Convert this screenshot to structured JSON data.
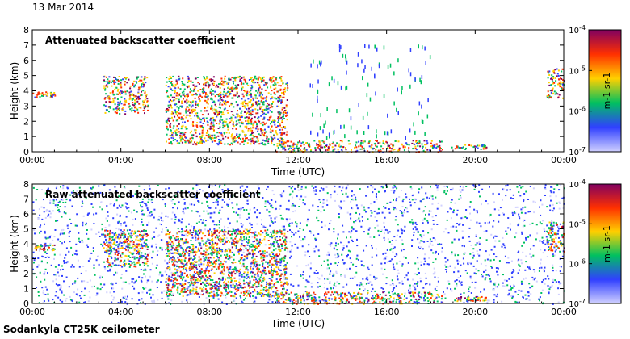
{
  "date": "13 Mar 2014",
  "instrument": "Sodankyla CT25K ceilometer",
  "colors": {
    "stops": [
      "#d0d0ff",
      "#3040ff",
      "#00c060",
      "#ffd000",
      "#ff3000",
      "#800060"
    ]
  },
  "chart_data": [
    {
      "type": "heatmap",
      "title": "Attenuated backscatter coefficient",
      "xlabel": "Time (UTC)",
      "ylabel": "Height (km)",
      "xlim": [
        0,
        24
      ],
      "ylim": [
        0,
        8
      ],
      "xticks": [
        "00:00",
        "04:00",
        "08:00",
        "12:00",
        "16:00",
        "20:00",
        "00:00"
      ],
      "yticks": [
        "0",
        "1",
        "2",
        "3",
        "4",
        "5",
        "6",
        "7",
        "8"
      ],
      "colorbar": {
        "scale": "log",
        "label": "m-1 sr-1",
        "range": [
          1e-07,
          0.0001
        ],
        "ticks": [
          "10-7",
          "10-6",
          "10-5",
          "10-4"
        ]
      },
      "features": [
        {
          "name": "cloud layer",
          "t": [
            0.0,
            1.0
          ],
          "h": [
            3.6,
            4.0
          ]
        },
        {
          "name": "cloud layer",
          "t": [
            3.2,
            5.2
          ],
          "h": [
            2.5,
            5.0
          ]
        },
        {
          "name": "precipitation band",
          "t": [
            6.0,
            11.5
          ],
          "h": [
            0.5,
            5.0
          ]
        },
        {
          "name": "boundary layer",
          "t": [
            11.0,
            18.5
          ],
          "h": [
            0.0,
            0.8
          ]
        },
        {
          "name": "sparse returns",
          "t": [
            12.5,
            18.0
          ],
          "h": [
            1.0,
            7.2
          ]
        },
        {
          "name": "low cloud",
          "t": [
            18.8,
            20.5
          ],
          "h": [
            0.2,
            0.5
          ]
        },
        {
          "name": "high cloud",
          "t": [
            23.2,
            24.0
          ],
          "h": [
            3.5,
            5.5
          ]
        }
      ]
    },
    {
      "type": "heatmap",
      "title": "Raw attenuated backscatter coefficient",
      "xlabel": "Time (UTC)",
      "ylabel": "Height (km)",
      "xlim": [
        0,
        24
      ],
      "ylim": [
        0,
        8
      ],
      "xticks": [
        "00:00",
        "04:00",
        "08:00",
        "12:00",
        "16:00",
        "20:00",
        "00:00"
      ],
      "yticks": [
        "0",
        "1",
        "2",
        "3",
        "4",
        "5",
        "6",
        "7",
        "8"
      ],
      "colorbar": {
        "scale": "log",
        "label": "m-1 sr-1",
        "range": [
          1e-07,
          0.0001
        ],
        "ticks": [
          "10-7",
          "10-6",
          "10-5",
          "10-4"
        ]
      },
      "features": [
        {
          "name": "noise background",
          "t": [
            0.0,
            24.0
          ],
          "h": [
            0.0,
            8.0
          ]
        },
        {
          "name": "cloud layer",
          "t": [
            0.0,
            1.0
          ],
          "h": [
            3.6,
            4.0
          ]
        },
        {
          "name": "cloud layer",
          "t": [
            3.2,
            5.2
          ],
          "h": [
            2.5,
            5.0
          ]
        },
        {
          "name": "precipitation band",
          "t": [
            6.0,
            11.5
          ],
          "h": [
            0.5,
            5.0
          ]
        },
        {
          "name": "boundary layer",
          "t": [
            11.0,
            18.5
          ],
          "h": [
            0.0,
            0.8
          ]
        },
        {
          "name": "low cloud",
          "t": [
            18.8,
            20.5
          ],
          "h": [
            0.2,
            0.5
          ]
        },
        {
          "name": "high cloud",
          "t": [
            23.2,
            24.0
          ],
          "h": [
            3.5,
            5.5
          ]
        }
      ]
    }
  ]
}
